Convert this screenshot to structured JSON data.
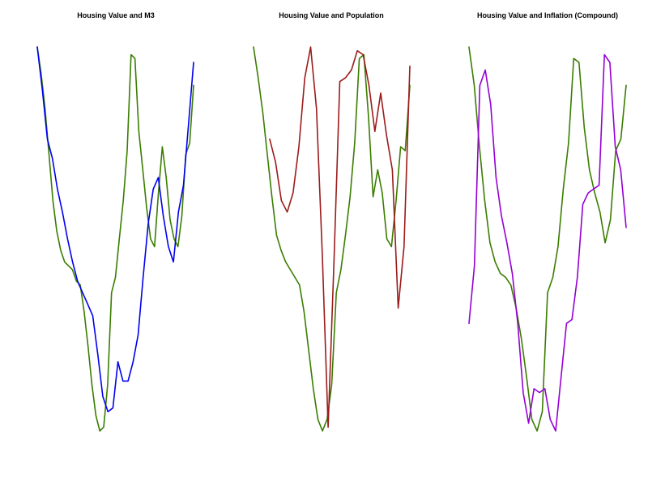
{
  "colors": {
    "housing": "#3a7d00",
    "m3": "#0000ee",
    "population": "#9b1b1b",
    "inflation": "#9400d3"
  },
  "chart_data": [
    {
      "type": "line",
      "title": "Housing Value and M3",
      "x": [
        0,
        1,
        2,
        3,
        4,
        5,
        6,
        7,
        8,
        9,
        10,
        11,
        12,
        13,
        14,
        15,
        16,
        17,
        18,
        19,
        20,
        21,
        22,
        23,
        24,
        25,
        26,
        27,
        28,
        29,
        30,
        31,
        32,
        33,
        34,
        35,
        36,
        37,
        38,
        39,
        40,
        41,
        42,
        43,
        44,
        45,
        46,
        47,
        48,
        49,
        50
      ],
      "ylim": [
        0,
        1
      ],
      "series": [
        {
          "key": "housing",
          "values": [
            1.0,
            0.93,
            0.84,
            0.72,
            0.6,
            0.52,
            0.47,
            0.44,
            0.43,
            0.42,
            0.39,
            0.38,
            0.31,
            0.22,
            0.12,
            0.04,
            0.0,
            0.01,
            0.12,
            0.36,
            0.4,
            0.5,
            0.6,
            0.73,
            0.98,
            0.97,
            0.78,
            0.68,
            0.58,
            0.5,
            0.48,
            0.62,
            0.74,
            0.66,
            0.55,
            0.5,
            0.48,
            0.56,
            0.72,
            0.75,
            0.9,
            null,
            null,
            null,
            null,
            null,
            null,
            null,
            null,
            null,
            null
          ]
        },
        {
          "key": "m3",
          "values": [
            1.0,
            0.89,
            0.76,
            0.71,
            0.63,
            0.57,
            0.5,
            0.44,
            0.39,
            0.36,
            0.33,
            0.3,
            0.2,
            0.09,
            0.05,
            0.06,
            0.18,
            0.13,
            0.13,
            0.18,
            0.25,
            0.4,
            0.54,
            0.63,
            0.66,
            0.56,
            0.48,
            0.44,
            0.57,
            0.64,
            0.8,
            0.96,
            null,
            null,
            null,
            null,
            null,
            null,
            null,
            null,
            null,
            null,
            null,
            null,
            null,
            null,
            null,
            null,
            null,
            null,
            null
          ]
        }
      ]
    },
    {
      "type": "line",
      "title": "Housing Value and Population",
      "x": [
        0,
        1,
        2,
        3,
        4,
        5,
        6,
        7,
        8,
        9,
        10,
        11,
        12,
        13,
        14,
        15,
        16,
        17,
        18,
        19,
        20,
        21,
        22,
        23,
        24,
        25,
        26,
        27,
        28,
        29,
        30,
        31,
        32,
        33,
        34,
        35,
        36,
        37,
        38,
        39,
        40,
        41,
        42,
        43,
        44,
        45,
        46,
        47,
        48,
        49,
        50
      ],
      "ylim": [
        0,
        1
      ],
      "series": [
        {
          "key": "housing",
          "values": [
            1.0,
            0.92,
            0.83,
            0.72,
            0.61,
            0.51,
            0.47,
            0.44,
            0.42,
            0.4,
            0.38,
            0.31,
            0.21,
            0.11,
            0.03,
            0.0,
            0.03,
            0.12,
            0.36,
            0.42,
            0.51,
            0.61,
            0.75,
            0.97,
            0.98,
            0.82,
            0.61,
            0.68,
            0.62,
            0.5,
            0.48,
            0.6,
            0.74,
            0.73,
            0.9,
            null,
            null,
            null,
            null,
            null,
            null,
            null,
            null,
            null,
            null,
            null,
            null,
            null,
            null,
            null,
            null
          ]
        },
        {
          "key": "population",
          "values": [
            0.76,
            0.7,
            0.6,
            0.57,
            0.62,
            0.74,
            0.92,
            1.0,
            0.84,
            0.46,
            0.01,
            0.44,
            0.91,
            0.92,
            0.94,
            0.99,
            0.98,
            0.9,
            0.78,
            0.88,
            0.77,
            0.68,
            0.32,
            0.48,
            0.95,
            null,
            null,
            null,
            null,
            null,
            null,
            null,
            null,
            null,
            null,
            null,
            null,
            null,
            null,
            null,
            null,
            null,
            null,
            null,
            null,
            null,
            null,
            null,
            null,
            null,
            null
          ]
        }
      ]
    },
    {
      "type": "line",
      "title": "Housing Value and Inflation (Compound)",
      "x": [
        0,
        1,
        2,
        3,
        4,
        5,
        6,
        7,
        8,
        9,
        10,
        11,
        12,
        13,
        14,
        15,
        16,
        17,
        18,
        19,
        20,
        21,
        22,
        23,
        24,
        25,
        26,
        27,
        28,
        29,
        30,
        31,
        32,
        33,
        34,
        35,
        36,
        37,
        38,
        39,
        40,
        41,
        42,
        43,
        44,
        45,
        46,
        47,
        48,
        49,
        50
      ],
      "ylim": [
        0,
        1
      ],
      "series": [
        {
          "key": "housing",
          "values": [
            1.0,
            0.9,
            0.74,
            0.6,
            0.49,
            0.44,
            0.41,
            0.4,
            0.38,
            0.32,
            0.24,
            0.14,
            0.03,
            0.0,
            0.05,
            0.36,
            0.4,
            0.48,
            0.63,
            0.75,
            0.97,
            0.96,
            0.79,
            0.68,
            0.62,
            0.57,
            0.49,
            0.55,
            0.73,
            0.76,
            0.9,
            null,
            null,
            null,
            null,
            null,
            null,
            null,
            null,
            null,
            null,
            null,
            null,
            null,
            null,
            null,
            null,
            null,
            null,
            null,
            null
          ]
        },
        {
          "key": "inflation",
          "values": [
            0.28,
            0.43,
            0.9,
            0.94,
            0.85,
            0.66,
            0.56,
            0.49,
            0.41,
            0.28,
            0.1,
            0.02,
            0.11,
            0.1,
            0.11,
            0.03,
            0.0,
            0.14,
            0.28,
            0.29,
            0.4,
            0.59,
            0.62,
            0.63,
            0.64,
            0.98,
            0.96,
            0.74,
            0.68,
            0.53,
            null,
            null,
            null,
            null,
            null,
            null,
            null,
            null,
            null,
            null,
            null,
            null,
            null,
            null,
            null,
            null,
            null,
            null,
            null,
            null,
            null
          ]
        }
      ]
    }
  ]
}
